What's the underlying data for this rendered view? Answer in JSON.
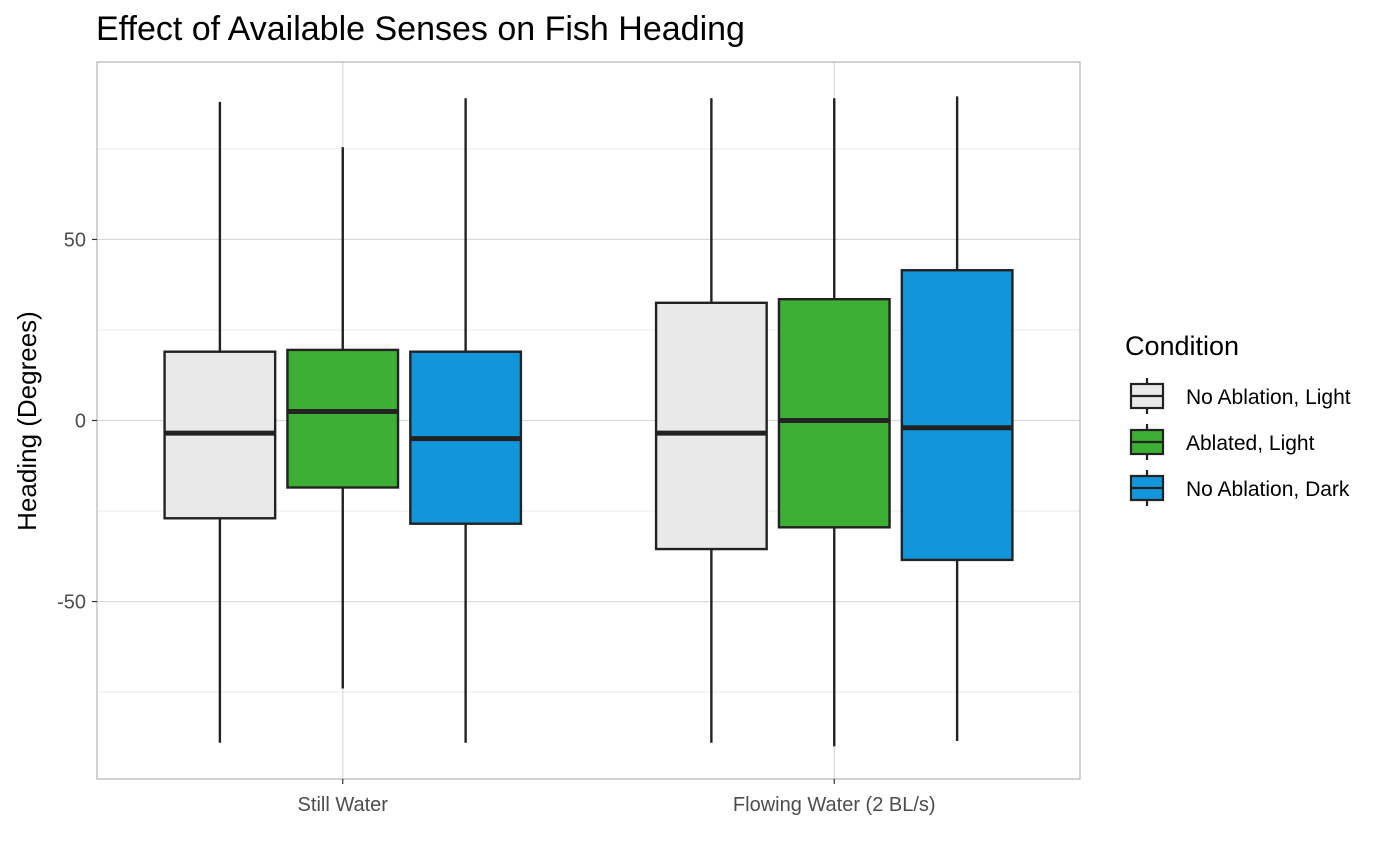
{
  "chart_data": {
    "type": "boxplot",
    "title": "Effect of Available Senses on Fish Heading",
    "xlabel": "",
    "ylabel": "Heading (Degrees)",
    "ylim": [
      -99,
      99
    ],
    "y_ticks": [
      -50,
      0,
      50
    ],
    "y_tick_labels": [
      "-50",
      "0",
      "50"
    ],
    "categories": [
      "Still Water",
      "Flowing Water (2 BL/s)"
    ],
    "grid": true,
    "legend": {
      "title": "Condition",
      "position": "right"
    },
    "series": [
      {
        "name": "No Ablation, Light",
        "color": "#e9e9e9",
        "boxes": [
          {
            "min": -89,
            "q1": -27,
            "median": -3.5,
            "q3": 19,
            "max": 88
          },
          {
            "min": -89,
            "q1": -35.5,
            "median": -3.5,
            "q3": 32.5,
            "max": 89
          }
        ]
      },
      {
        "name": "Ablated, Light",
        "color": "#3daf35",
        "boxes": [
          {
            "min": -74,
            "q1": -18.5,
            "median": 2.5,
            "q3": 19.5,
            "max": 75.5
          },
          {
            "min": -90,
            "q1": -29.5,
            "median": 0,
            "q3": 33.5,
            "max": 89
          }
        ]
      },
      {
        "name": "No Ablation, Dark",
        "color": "#1296db",
        "boxes": [
          {
            "min": -89,
            "q1": -28.5,
            "median": -5,
            "q3": 19,
            "max": 89
          },
          {
            "min": -88.5,
            "q1": -38.5,
            "median": -2,
            "q3": 41.5,
            "max": 89.5
          }
        ]
      }
    ]
  }
}
